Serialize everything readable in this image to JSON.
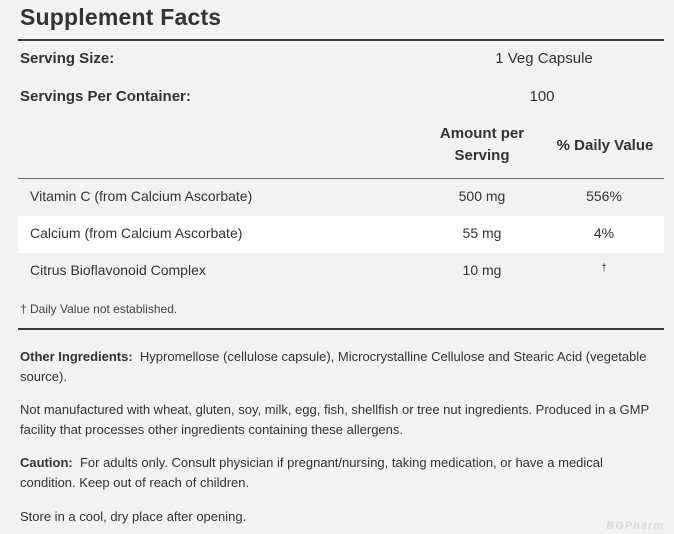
{
  "title": "Supplement Facts",
  "serving_size": {
    "label": "Serving Size:",
    "value": "1 Veg Capsule"
  },
  "servings_per_container": {
    "label": "Servings Per Container:",
    "value": "100"
  },
  "columns": {
    "amount_line1": "Amount per",
    "amount_line2": "Serving",
    "daily_value": "% Daily Value"
  },
  "nutrients": [
    {
      "name": "Vitamin C (from Calcium Ascorbate)",
      "amount": "500 mg",
      "dv": "556%"
    },
    {
      "name": "Calcium (from Calcium Ascorbate)",
      "amount": "55 mg",
      "dv": "4%"
    },
    {
      "name": "Citrus Bioflavonoid Complex",
      "amount": "10 mg",
      "dv": "†"
    }
  ],
  "footnote": "† Daily Value not established.",
  "other_ingredients": {
    "label": "Other Ingredients:",
    "text": "Hypromellose (cellulose capsule), Microcrystalline Cellulose and Stearic Acid (vegetable source)."
  },
  "allergen_statement": "Not manufactured with wheat, gluten, soy, milk, egg, fish, shellfish or tree nut ingredients. Produced in a GMP facility that processes other ingredients containing these allergens.",
  "caution": {
    "label": "Caution:",
    "text": "For adults only. Consult physician if pregnant/nursing, taking medication, or have a medical condition. Keep out of reach of children."
  },
  "storage": "Store in a cool, dry place after opening.",
  "watermark": "BGPharm"
}
